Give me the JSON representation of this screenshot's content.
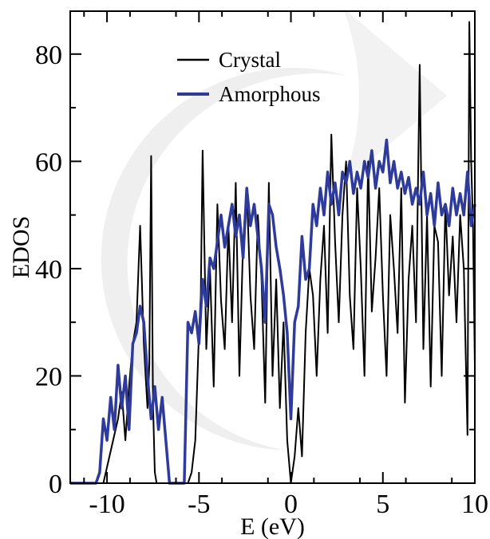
{
  "chart_data": {
    "type": "line",
    "title": "",
    "xlabel": "E (eV)",
    "ylabel": "EDOS",
    "xlim": [
      -12,
      10
    ],
    "ylim": [
      0,
      88
    ],
    "x_ticks": [
      -10,
      -5,
      0,
      5,
      10
    ],
    "x_tick_labels": [
      "-10",
      "-5",
      "0",
      "5",
      "10"
    ],
    "y_ticks": [
      0,
      20,
      40,
      60,
      80
    ],
    "y_tick_labels": [
      "0",
      "20",
      "40",
      "60",
      "80"
    ],
    "grid": false,
    "legend_position": "top-center",
    "background_watermark": "gray-circular-logo",
    "series": [
      {
        "name": "Crystal",
        "color": "#000000",
        "x": [
          -12,
          -10.4,
          -10.2,
          -10.0,
          -9.8,
          -9.6,
          -9.4,
          -9.2,
          -9.0,
          -8.8,
          -8.6,
          -8.4,
          -8.2,
          -8.0,
          -7.8,
          -7.7,
          -7.6,
          -7.5,
          -7.4,
          -7.3,
          -7.2,
          -7.1,
          -7.0,
          -6.5,
          -5.6,
          -5.4,
          -5.2,
          -5.0,
          -4.9,
          -4.8,
          -4.6,
          -4.4,
          -4.2,
          -4.0,
          -3.8,
          -3.6,
          -3.4,
          -3.2,
          -3.0,
          -2.8,
          -2.6,
          -2.4,
          -2.2,
          -2.0,
          -1.8,
          -1.6,
          -1.4,
          -1.2,
          -1.0,
          -0.8,
          -0.6,
          -0.4,
          -0.2,
          0.0,
          0.2,
          0.4,
          0.6,
          0.8,
          1.0,
          1.2,
          1.4,
          1.6,
          1.8,
          2.0,
          2.2,
          2.4,
          2.6,
          2.8,
          3.0,
          3.2,
          3.4,
          3.6,
          3.8,
          4.0,
          4.2,
          4.4,
          4.6,
          4.8,
          5.0,
          5.2,
          5.4,
          5.6,
          5.8,
          6.0,
          6.2,
          6.4,
          6.6,
          6.8,
          7.0,
          7.2,
          7.4,
          7.6,
          7.8,
          8.0,
          8.2,
          8.4,
          8.6,
          8.8,
          9.0,
          9.2,
          9.4,
          9.6,
          9.7,
          9.8,
          9.9,
          10.0
        ],
        "y": [
          0,
          0,
          0,
          3,
          6,
          9,
          12,
          17,
          8,
          18,
          26,
          30,
          48,
          26,
          14,
          22,
          61,
          15,
          2,
          0,
          0,
          0,
          0,
          0,
          0,
          2,
          8,
          28,
          35,
          62,
          25,
          40,
          18,
          52,
          34,
          25,
          48,
          30,
          56,
          20,
          45,
          55,
          35,
          25,
          50,
          38,
          15,
          56,
          20,
          38,
          14,
          30,
          8,
          0,
          5,
          14,
          5,
          28,
          40,
          35,
          20,
          38,
          48,
          28,
          65,
          45,
          30,
          50,
          60,
          35,
          25,
          55,
          40,
          20,
          60,
          32,
          42,
          55,
          35,
          20,
          50,
          40,
          28,
          55,
          15,
          38,
          48,
          30,
          78,
          25,
          50,
          18,
          48,
          45,
          20,
          52,
          35,
          46,
          30,
          50,
          40,
          9,
          86,
          60,
          48,
          22
        ]
      },
      {
        "name": "Amorphous",
        "color": "#2e3b9a",
        "x": [
          -12,
          -10.6,
          -10.4,
          -10.2,
          -10.0,
          -9.8,
          -9.6,
          -9.4,
          -9.2,
          -9.0,
          -8.8,
          -8.6,
          -8.4,
          -8.2,
          -8.0,
          -7.8,
          -7.6,
          -7.4,
          -7.2,
          -7.0,
          -6.8,
          -6.6,
          -6.4,
          -6.2,
          -6.0,
          -5.8,
          -5.6,
          -5.4,
          -5.2,
          -5.0,
          -4.8,
          -4.6,
          -4.4,
          -4.2,
          -4.0,
          -3.8,
          -3.6,
          -3.4,
          -3.2,
          -3.0,
          -2.8,
          -2.6,
          -2.4,
          -2.2,
          -2.0,
          -1.8,
          -1.6,
          -1.4,
          -1.2,
          -1.0,
          -0.8,
          -0.6,
          -0.4,
          -0.2,
          0.0,
          0.2,
          0.4,
          0.6,
          0.8,
          1.0,
          1.2,
          1.4,
          1.6,
          1.8,
          2.0,
          2.2,
          2.4,
          2.6,
          2.8,
          3.0,
          3.2,
          3.4,
          3.6,
          3.8,
          4.0,
          4.2,
          4.4,
          4.6,
          4.8,
          5.0,
          5.2,
          5.4,
          5.6,
          5.8,
          6.0,
          6.2,
          6.4,
          6.6,
          6.8,
          7.0,
          7.2,
          7.4,
          7.6,
          7.8,
          8.0,
          8.2,
          8.4,
          8.6,
          8.8,
          9.0,
          9.2,
          9.4,
          9.6,
          9.8,
          10.0
        ],
        "y": [
          0,
          0,
          2,
          12,
          8,
          16,
          10,
          22,
          14,
          20,
          10,
          26,
          28,
          33,
          30,
          20,
          12,
          18,
          10,
          16,
          8,
          0,
          0,
          0,
          0,
          0,
          30,
          28,
          32,
          26,
          38,
          33,
          42,
          40,
          45,
          50,
          44,
          48,
          52,
          46,
          50,
          42,
          55,
          48,
          52,
          46,
          40,
          30,
          52,
          50,
          44,
          40,
          35,
          28,
          12,
          30,
          33,
          46,
          38,
          40,
          52,
          48,
          55,
          50,
          58,
          52,
          56,
          50,
          58,
          56,
          60,
          54,
          58,
          55,
          60,
          57,
          62,
          55,
          60,
          58,
          64,
          56,
          60,
          55,
          58,
          54,
          57,
          52,
          55,
          52,
          58,
          50,
          54,
          48,
          56,
          50,
          52,
          48,
          55,
          50,
          54,
          50,
          58,
          48,
          52
        ]
      }
    ]
  }
}
